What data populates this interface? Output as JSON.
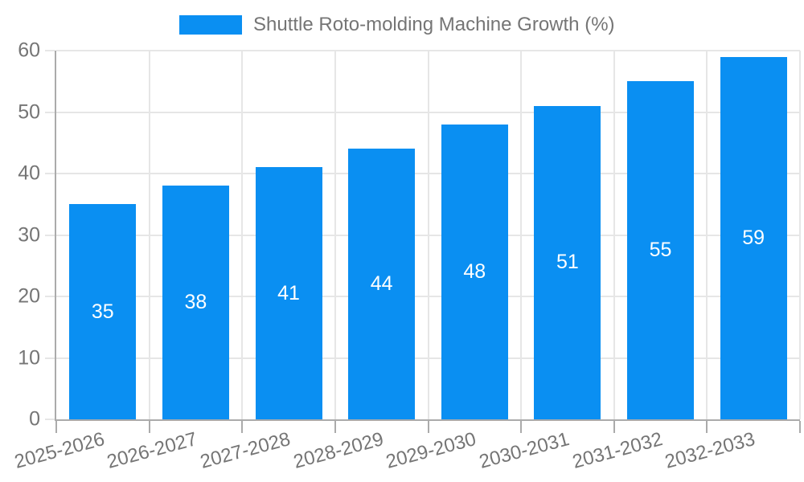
{
  "legend": {
    "label": "Shuttle Roto-molding Machine Growth (%)"
  },
  "chart_data": {
    "type": "bar",
    "title": "Shuttle Roto-molding Machine Growth (%)",
    "categories": [
      "2025-2026",
      "2026-2027",
      "2027-2028",
      "2028-2029",
      "2029-2030",
      "2030-2031",
      "2031-2032",
      "2032-2033"
    ],
    "values": [
      35,
      38,
      41,
      44,
      48,
      51,
      55,
      59
    ],
    "series_name": "Shuttle Roto-molding Machine Growth (%)",
    "xlabel": "",
    "ylabel": "",
    "ylim": [
      0,
      60
    ],
    "ytick_step": 10,
    "yticks": [
      0,
      10,
      20,
      30,
      40,
      50,
      60
    ],
    "grid": true,
    "legend_position": "top",
    "bar_labels_inside": true,
    "colors": {
      "bar": "#0a8ff2",
      "bar_label": "#ffffff",
      "grid": "#e6e6e6",
      "axis": "#ababab",
      "tick_text": "#757575",
      "legend_text": "#757575",
      "background": "#ffffff"
    }
  }
}
